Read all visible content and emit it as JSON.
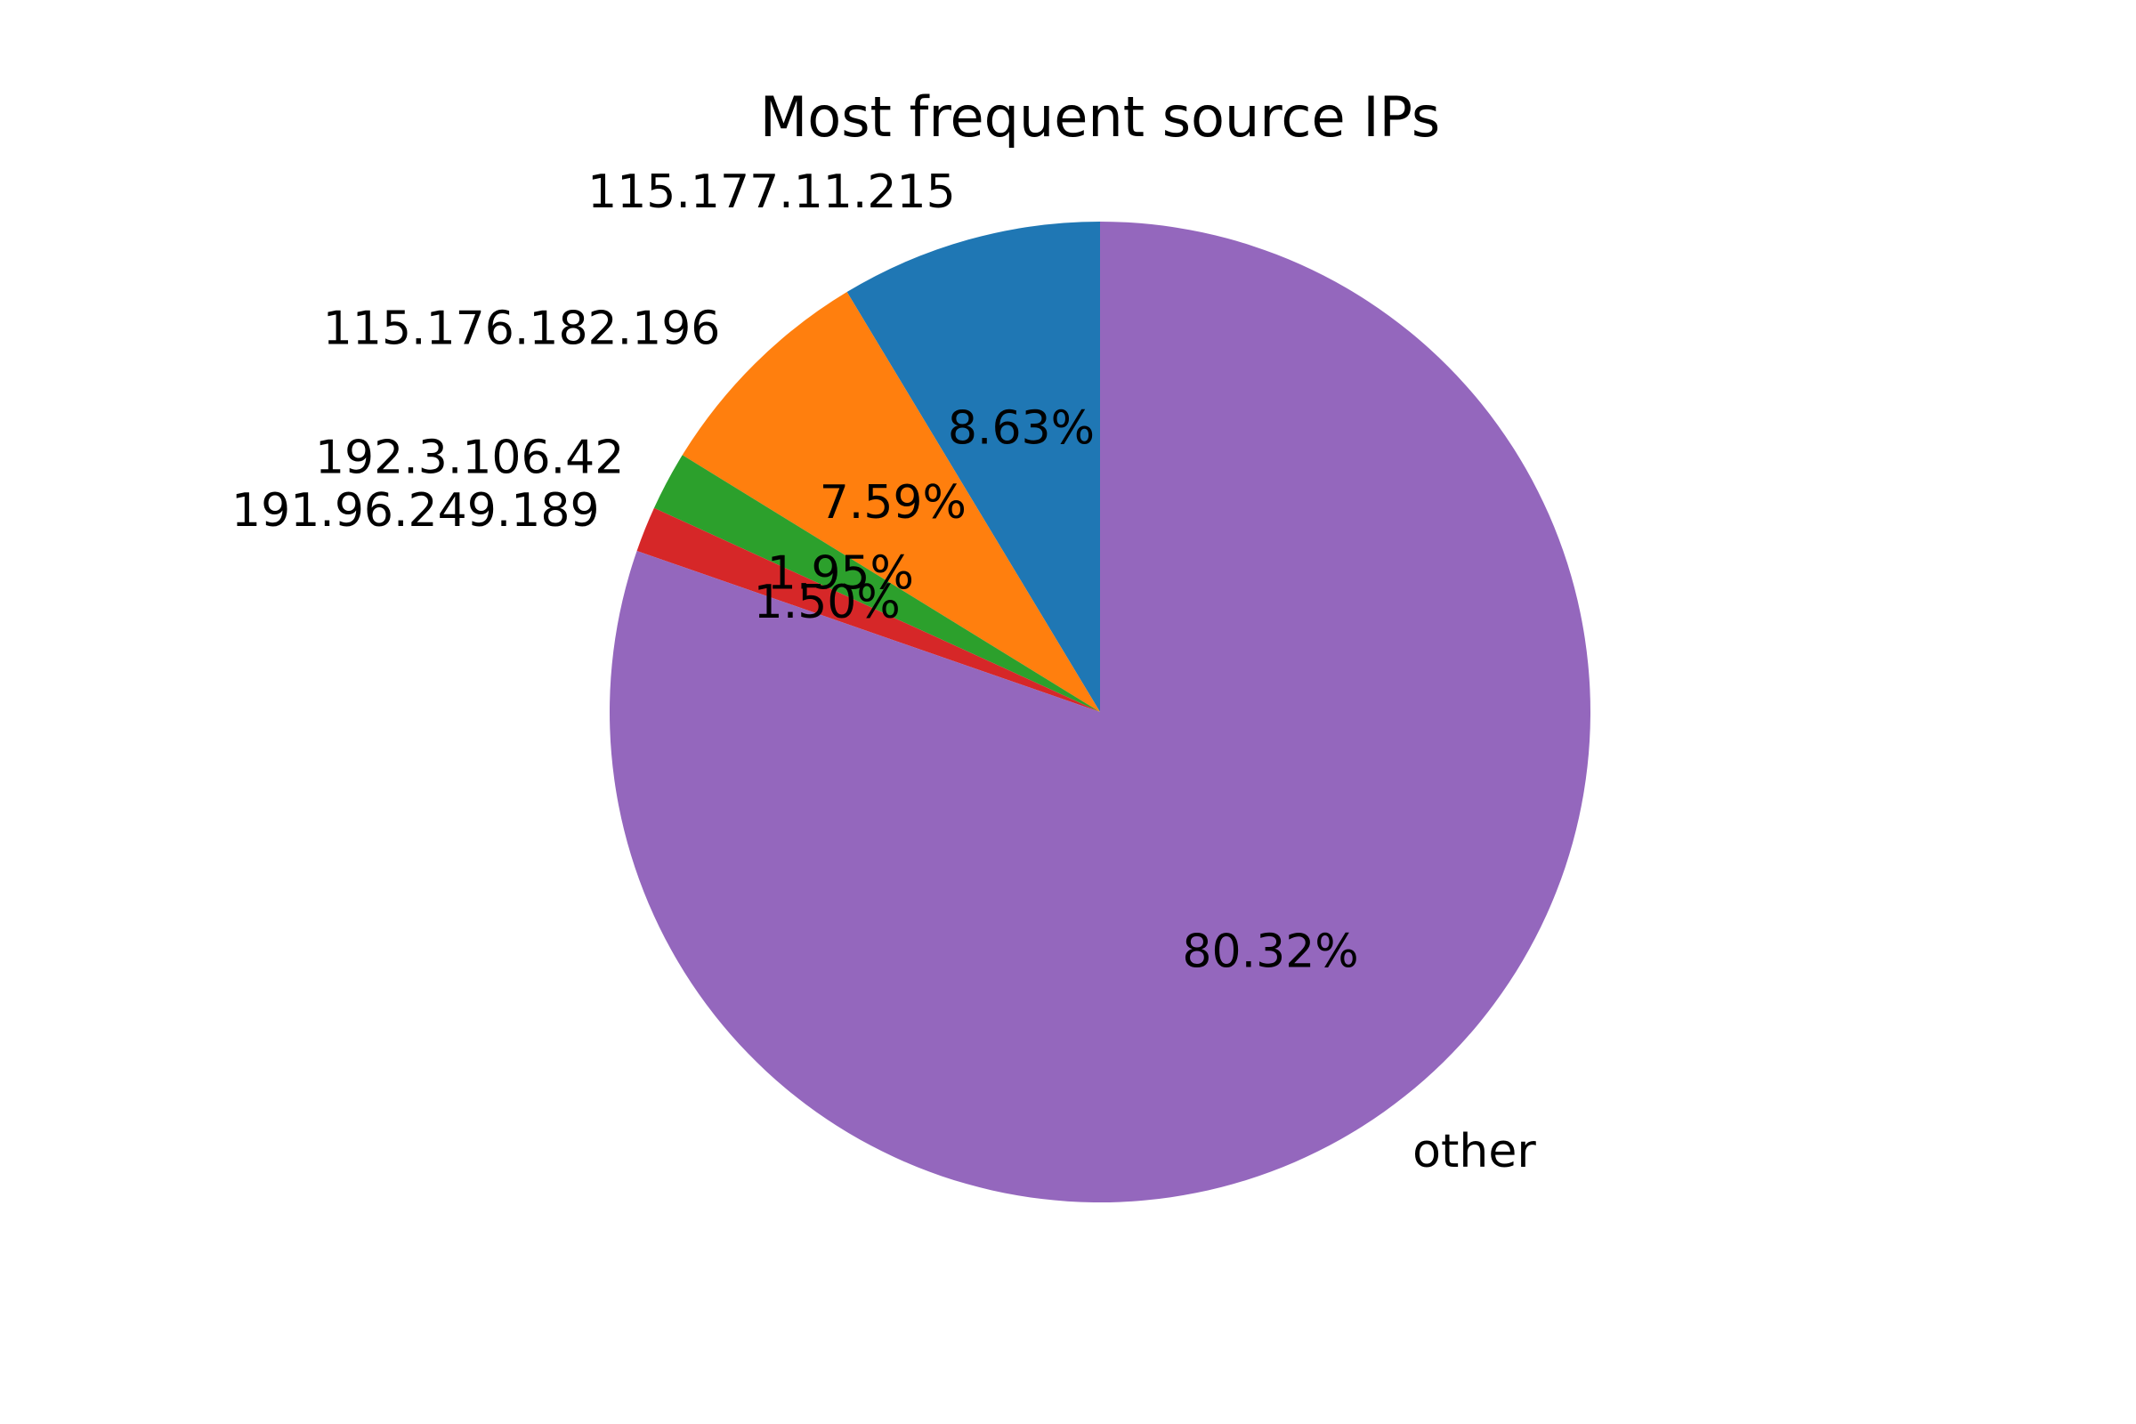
{
  "chart_data": {
    "type": "pie",
    "title": "Most frequent source IPs",
    "slices": [
      {
        "label": "115.177.11.215",
        "value": 8.63,
        "pct_label": "8.63%",
        "color": "#1f77b4"
      },
      {
        "label": "115.176.182.196",
        "value": 7.59,
        "pct_label": "7.59%",
        "color": "#ff7f0e"
      },
      {
        "label": "192.3.106.42",
        "value": 1.95,
        "pct_label": "1.95%",
        "color": "#2ca02c"
      },
      {
        "label": "191.96.249.189",
        "value": 1.5,
        "pct_label": "1.50%",
        "color": "#d62728"
      },
      {
        "label": "other",
        "value": 80.32,
        "pct_label": "80.32%",
        "color": "#9467bd"
      }
    ],
    "start_angle": 90,
    "direction": "counterclockwise"
  }
}
